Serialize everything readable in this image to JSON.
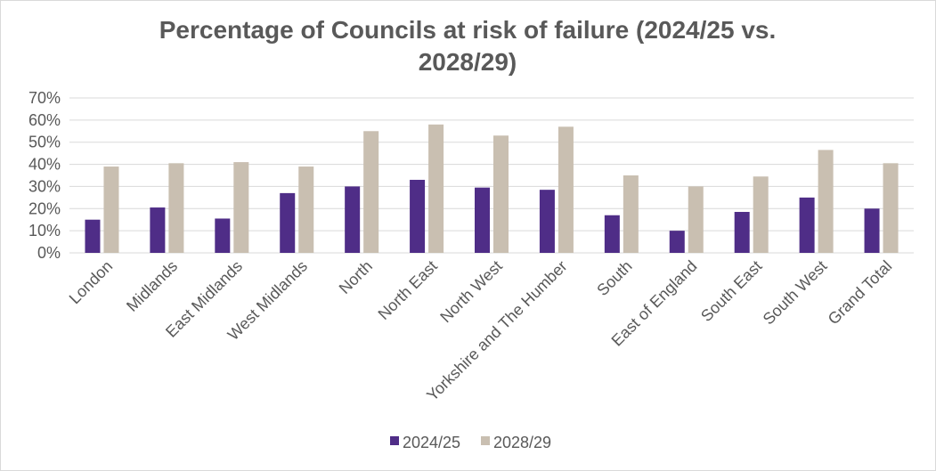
{
  "colors": {
    "series_2024_25": "#4f2d87",
    "series_2028_29": "#c9bfb1",
    "gridline": "#d9d9d9",
    "text": "#595959",
    "border": "#d9d9d9"
  },
  "chart_data": {
    "type": "bar",
    "title": "Percentage of Councils at risk of failure (2024/25 vs. 2028/29)",
    "xlabel": "",
    "ylabel": "",
    "ylim": [
      0,
      70
    ],
    "y_ticks": [
      "0%",
      "10%",
      "20%",
      "30%",
      "40%",
      "50%",
      "60%",
      "70%"
    ],
    "grid": true,
    "legend_position": "bottom",
    "categories": [
      "London",
      "Midlands",
      "East Midlands",
      "West Midlands",
      "North",
      "North East",
      "North West",
      "Yorkshire and The Humber",
      "South",
      "East of England",
      "South East",
      "South West",
      "Grand Total"
    ],
    "series": [
      {
        "name": "2024/25",
        "values": [
          15,
          20.5,
          15.5,
          27,
          30,
          33,
          29.5,
          28.5,
          17,
          10,
          18.5,
          25,
          20
        ]
      },
      {
        "name": "2028/29",
        "values": [
          39,
          40.5,
          41,
          39,
          55,
          58,
          53,
          57,
          35,
          30,
          34.5,
          46.5,
          40.5
        ]
      }
    ]
  }
}
